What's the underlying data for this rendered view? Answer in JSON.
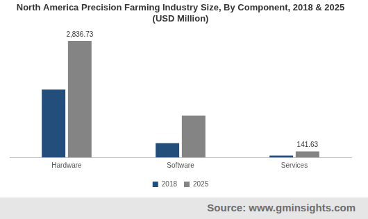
{
  "chart_data": {
    "type": "bar",
    "title": [
      "North America Precision Farming Industry Size, By Component, 2018 & 2025",
      "(USD Million)"
    ],
    "categories": [
      "Hardware",
      "Software",
      "Services"
    ],
    "series": [
      {
        "name": "2018",
        "color": "#234e7b",
        "values": [
          1648,
          344,
          43
        ],
        "value_labels": [
          null,
          null,
          null
        ]
      },
      {
        "name": "2025",
        "color": "#848484",
        "values": [
          2836.73,
          1017,
          141.63
        ],
        "value_labels": [
          "2,836.73",
          null,
          "141.63"
        ]
      }
    ],
    "ylim": [
      0,
      3000
    ],
    "grid": false,
    "legend": "bottom",
    "data_labels": true,
    "tick_labels": "x",
    "source": "Source: www.gminsights.com"
  }
}
